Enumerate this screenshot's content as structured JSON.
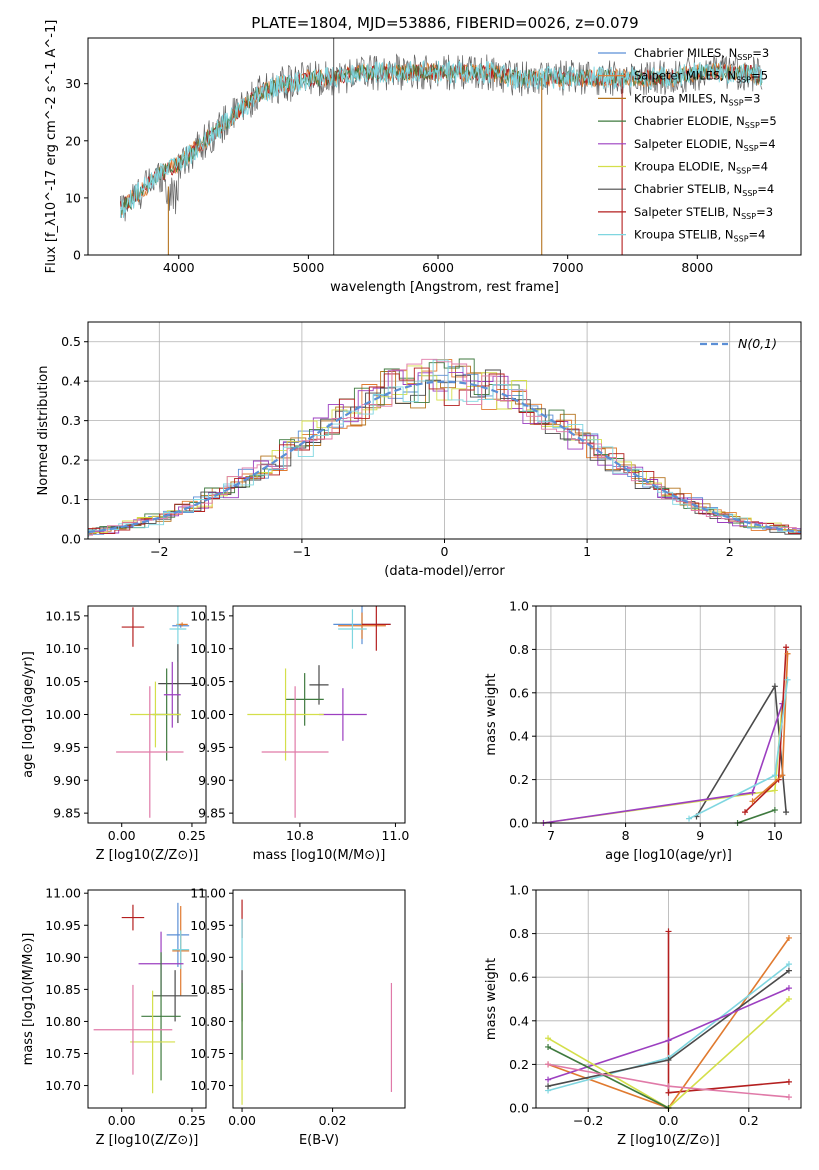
{
  "figure_title": "PLATE=1804, MJD=53886, FIBERID=0026, z=0.079",
  "legend_spectrum": [
    {
      "base": "Chabrier MILES, N",
      "sub": "SSP",
      "tail": "=3",
      "color": "#5b8fd6"
    },
    {
      "base": "Salpeter MILES, N",
      "sub": "SSP",
      "tail": "=5",
      "color": "#e07a2f"
    },
    {
      "base": "Kroupa MILES, N",
      "sub": "SSP",
      "tail": "=3",
      "color": "#b5741f"
    },
    {
      "base": "Chabrier ELODIE, N",
      "sub": "SSP",
      "tail": "=5",
      "color": "#3f7a3f"
    },
    {
      "base": "Salpeter ELODIE, N",
      "sub": "SSP",
      "tail": "=4",
      "color": "#9c3fc0"
    },
    {
      "base": "Kroupa ELODIE, N",
      "sub": "SSP",
      "tail": "=4",
      "color": "#d4df4a"
    },
    {
      "base": "Chabrier STELIB, N",
      "sub": "SSP",
      "tail": "=4",
      "color": "#4a4a4a"
    },
    {
      "base": "Salpeter STELIB, N",
      "sub": "SSP",
      "tail": "=3",
      "color": "#b41f1f"
    },
    {
      "base": "Kroupa STELIB, N",
      "sub": "SSP",
      "tail": "=4",
      "color": "#7fd6e0"
    }
  ],
  "model_colors": [
    "#5b8fd6",
    "#e07a2f",
    "#b5741f",
    "#3f7a3f",
    "#9c3fc0",
    "#d4df4a",
    "#4a4a4a",
    "#b41f1f",
    "#7fd6e0",
    "#e07aa8"
  ],
  "chart_data": [
    {
      "id": "spectrum",
      "type": "line",
      "xlabel": "wavelength [Angstrom, rest frame]",
      "ylabel": "Flux [f_λ10^-17 erg cm^-2 s^-1 A^-1]",
      "xlim": [
        3300,
        8800
      ],
      "ylim": [
        0,
        38
      ],
      "xticks": [
        4000,
        5000,
        6000,
        7000,
        8000
      ],
      "yticks": [
        0,
        10,
        20,
        30
      ],
      "envelope_x": [
        3550,
        3700,
        3850,
        4000,
        4100,
        4200,
        4300,
        4400,
        4500,
        4600,
        4700,
        4800,
        4900,
        5000,
        5200,
        5400,
        5600,
        5800,
        6000,
        6200,
        6400,
        6600,
        6800,
        7000,
        7200,
        7400,
        7600,
        7800,
        8000,
        8200,
        8400,
        8500
      ],
      "envelope_y": [
        8,
        11,
        14,
        16,
        18,
        20,
        22,
        24,
        26,
        28,
        29,
        30,
        30,
        31,
        31,
        32,
        32,
        32,
        32,
        32,
        32,
        31,
        31,
        31,
        31,
        31,
        31,
        31,
        32,
        32,
        32,
        31
      ]
    },
    {
      "id": "residuals",
      "type": "line",
      "xlabel": "(data-model)/error",
      "ylabel": "Normed distribution",
      "xlim": [
        -2.5,
        2.5
      ],
      "ylim": [
        0,
        0.55
      ],
      "xticks": [
        -2,
        -1,
        0,
        1,
        2
      ],
      "yticks": [
        0.0,
        0.1,
        0.2,
        0.3,
        0.4,
        0.5
      ],
      "grid": true,
      "legend": "N(0,1)",
      "legend_position": "top-right",
      "gaussian": {
        "mean": 0,
        "sigma": 1
      }
    },
    {
      "id": "age-vs-Z",
      "type": "scatter",
      "xlabel": "Z [log10(Z/Z⊙)]",
      "ylabel": "age  [log10(age/yr)]",
      "xlim": [
        -0.12,
        0.3
      ],
      "ylim": [
        9.835,
        10.165
      ],
      "xticks": [
        0.0,
        0.25
      ],
      "yticks": [
        9.85,
        9.9,
        9.95,
        10.0,
        10.05,
        10.1,
        10.15
      ],
      "points": [
        {
          "x": 0.21,
          "y": 10.135,
          "xerr": 0.03,
          "yerr": 0.003,
          "c": 0
        },
        {
          "x": 0.215,
          "y": 10.137,
          "xerr": 0.02,
          "yerr": 0.003,
          "c": 1
        },
        {
          "x": 0.04,
          "y": 10.133,
          "xerr": 0.04,
          "yerr": 0.03,
          "c": 7
        },
        {
          "x": 0.2,
          "y": 10.13,
          "xerr": 0.03,
          "yerr": 0.05,
          "c": 8
        },
        {
          "x": 0.2,
          "y": 10.047,
          "xerr": 0.07,
          "yerr": 0.06,
          "c": 6
        },
        {
          "x": 0.16,
          "y": 10.0,
          "xerr": 0.05,
          "yerr": 0.07,
          "c": 3
        },
        {
          "x": 0.18,
          "y": 10.03,
          "xerr": 0.03,
          "yerr": 0.05,
          "c": 4
        },
        {
          "x": 0.12,
          "y": 10.0,
          "xerr": 0.09,
          "yerr": 0.05,
          "c": 5
        },
        {
          "x": 0.1,
          "y": 9.943,
          "xerr": 0.12,
          "yerr": 0.1,
          "c": 9
        }
      ]
    },
    {
      "id": "age-vs-mass",
      "type": "scatter",
      "xlabel": "mass [log10(M/M⊙)]",
      "ylabel": "",
      "xlim": [
        10.66,
        11.02
      ],
      "ylim": [
        9.835,
        10.165
      ],
      "xticks": [
        10.8,
        11.0
      ],
      "yticks": [
        9.85,
        9.9,
        9.95,
        10.0,
        10.05,
        10.1,
        10.15
      ],
      "points": [
        {
          "x": 10.93,
          "y": 10.137,
          "xerr": 0.06,
          "yerr": 0.03,
          "c": 0
        },
        {
          "x": 10.93,
          "y": 10.135,
          "xerr": 0.05,
          "yerr": 0.02,
          "c": 1
        },
        {
          "x": 10.96,
          "y": 10.137,
          "xerr": 0.03,
          "yerr": 0.04,
          "c": 7
        },
        {
          "x": 10.91,
          "y": 10.13,
          "xerr": 0.03,
          "yerr": 0.03,
          "c": 8
        },
        {
          "x": 10.84,
          "y": 10.045,
          "xerr": 0.02,
          "yerr": 0.03,
          "c": 6
        },
        {
          "x": 10.81,
          "y": 10.023,
          "xerr": 0.04,
          "yerr": 0.04,
          "c": 3
        },
        {
          "x": 10.89,
          "y": 10.0,
          "xerr": 0.05,
          "yerr": 0.04,
          "c": 4
        },
        {
          "x": 10.77,
          "y": 10.0,
          "xerr": 0.08,
          "yerr": 0.07,
          "c": 5
        },
        {
          "x": 10.79,
          "y": 9.943,
          "xerr": 0.07,
          "yerr": 0.1,
          "c": 9
        }
      ]
    },
    {
      "id": "weight-vs-age",
      "type": "line",
      "xlabel": "age  [log10(age/yr)]",
      "ylabel": "mass weight",
      "xlim": [
        6.8,
        10.35
      ],
      "ylim": [
        0,
        1
      ],
      "xticks": [
        7,
        8,
        9,
        10
      ],
      "yticks": [
        0.0,
        0.2,
        0.4,
        0.6,
        0.8,
        1.0
      ],
      "grid": true,
      "series": [
        {
          "c": 6,
          "x": [
            8.95,
            10.0,
            10.15
          ],
          "y": [
            0.03,
            0.63,
            0.05
          ]
        },
        {
          "c": 5,
          "x": [
            6.9,
            10.0,
            10.1
          ],
          "y": [
            0.0,
            0.15,
            0.55
          ]
        },
        {
          "c": 4,
          "x": [
            6.9,
            9.7,
            10.1
          ],
          "y": [
            0.0,
            0.14,
            0.55
          ]
        },
        {
          "c": 7,
          "x": [
            9.6,
            10.05,
            10.15
          ],
          "y": [
            0.05,
            0.2,
            0.81
          ]
        },
        {
          "c": 1,
          "x": [
            9.7,
            10.1,
            10.17
          ],
          "y": [
            0.1,
            0.22,
            0.78
          ]
        },
        {
          "c": 8,
          "x": [
            8.85,
            10.0,
            10.17
          ],
          "y": [
            0.02,
            0.22,
            0.66
          ]
        },
        {
          "c": 3,
          "x": [
            9.5,
            10.0
          ],
          "y": [
            0.0,
            0.06
          ]
        }
      ]
    },
    {
      "id": "mass-vs-Z",
      "type": "scatter",
      "xlabel": "Z [log10(Z/Z⊙)]",
      "ylabel": "mass [log10(M/M⊙)]",
      "xlim": [
        -0.12,
        0.3
      ],
      "ylim": [
        10.665,
        11.005
      ],
      "xticks": [
        0.0,
        0.25
      ],
      "yticks": [
        10.7,
        10.75,
        10.8,
        10.85,
        10.9,
        10.95,
        11.0
      ],
      "points": [
        {
          "x": 0.04,
          "y": 10.962,
          "xerr": 0.04,
          "yerr": 0.02,
          "c": 7
        },
        {
          "x": 0.2,
          "y": 10.935,
          "xerr": 0.04,
          "yerr": 0.05,
          "c": 0
        },
        {
          "x": 0.21,
          "y": 10.91,
          "xerr": 0.03,
          "yerr": 0.07,
          "c": 1
        },
        {
          "x": 0.21,
          "y": 10.912,
          "xerr": 0.03,
          "yerr": 0.03,
          "c": 8
        },
        {
          "x": 0.14,
          "y": 10.89,
          "xerr": 0.08,
          "yerr": 0.05,
          "c": 4
        },
        {
          "x": 0.19,
          "y": 10.84,
          "xerr": 0.08,
          "yerr": 0.04,
          "c": 6
        },
        {
          "x": 0.14,
          "y": 10.808,
          "xerr": 0.07,
          "yerr": 0.1,
          "c": 3
        },
        {
          "x": 0.11,
          "y": 10.768,
          "xerr": 0.08,
          "yerr": 0.08,
          "c": 5
        },
        {
          "x": 0.04,
          "y": 10.787,
          "xerr": 0.14,
          "yerr": 0.07,
          "c": 9
        }
      ]
    },
    {
      "id": "mass-vs-EBV",
      "type": "scatter",
      "xlabel": "E(B-V)",
      "ylabel": "",
      "xlim": [
        -0.002,
        0.036
      ],
      "ylim": [
        10.665,
        11.005
      ],
      "xticks": [
        0.0,
        0.02
      ],
      "yticks": [
        10.7,
        10.75,
        10.8,
        10.85,
        10.9,
        10.95,
        11.0
      ],
      "points": [
        {
          "x": 0.0,
          "y": 10.96,
          "xerr": 0,
          "yerr": 0.03,
          "c": 7
        },
        {
          "x": 0.0,
          "y": 10.92,
          "xerr": 0,
          "yerr": 0.04,
          "c": 8
        },
        {
          "x": 0.0,
          "y": 10.84,
          "xerr": 0,
          "yerr": 0.04,
          "c": 6
        },
        {
          "x": 0.0,
          "y": 10.76,
          "xerr": 0,
          "yerr": 0.09,
          "c": 5
        },
        {
          "x": 0.0,
          "y": 10.8,
          "xerr": 0,
          "yerr": 0.06,
          "c": 3
        },
        {
          "x": 0.033,
          "y": 10.775,
          "xerr": 0,
          "yerr": 0.085,
          "c": 9
        }
      ]
    },
    {
      "id": "weight-vs-Z",
      "type": "line",
      "xlabel": "Z [log10(Z/Z⊙)]",
      "ylabel": "mass weight",
      "xlim": [
        -0.33,
        0.33
      ],
      "ylim": [
        0,
        1
      ],
      "xticks": [
        -0.2,
        0.0,
        0.2
      ],
      "yticks": [
        0.0,
        0.2,
        0.4,
        0.6,
        0.8,
        1.0
      ],
      "grid": true,
      "series": [
        {
          "c": 7,
          "x": [
            0.0,
            0.0,
            0.3
          ],
          "y": [
            0.81,
            0.07,
            0.12
          ]
        },
        {
          "c": 1,
          "x": [
            -0.3,
            0.0,
            0.3
          ],
          "y": [
            0.2,
            0.0,
            0.78
          ]
        },
        {
          "c": 8,
          "x": [
            -0.3,
            0.0,
            0.3
          ],
          "y": [
            0.08,
            0.23,
            0.66
          ]
        },
        {
          "c": 6,
          "x": [
            -0.3,
            0.0,
            0.3
          ],
          "y": [
            0.1,
            0.22,
            0.63
          ]
        },
        {
          "c": 4,
          "x": [
            -0.3,
            0.0,
            0.3
          ],
          "y": [
            0.13,
            0.31,
            0.55
          ]
        },
        {
          "c": 5,
          "x": [
            -0.3,
            0.0,
            0.3
          ],
          "y": [
            0.32,
            0.0,
            0.5
          ]
        },
        {
          "c": 3,
          "x": [
            -0.3,
            0.0
          ],
          "y": [
            0.28,
            0.0
          ]
        },
        {
          "c": 9,
          "x": [
            -0.3,
            0.0,
            0.3
          ],
          "y": [
            0.2,
            0.1,
            0.05
          ]
        }
      ]
    }
  ]
}
